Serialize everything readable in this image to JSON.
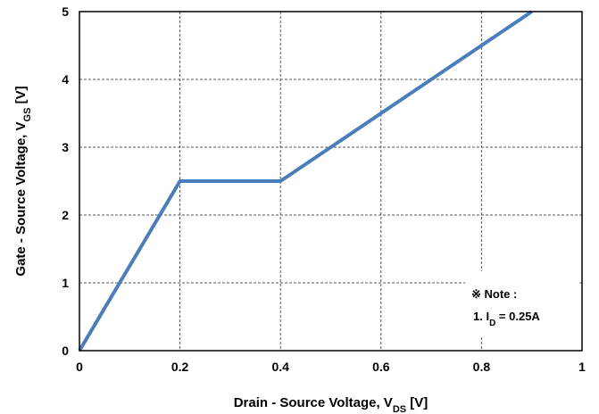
{
  "chart_data": {
    "type": "line",
    "title": "",
    "xlabel": {
      "main": "Drain - Source Voltage, V",
      "sub": "DS",
      "unit": " [V]"
    },
    "ylabel": {
      "main": "Gate - Source Voltage, V",
      "sub": "GS",
      "unit": " [V]"
    },
    "xlim": [
      0,
      1
    ],
    "ylim": [
      0,
      5
    ],
    "x_ticks": [
      "0",
      "0.2",
      "0.4",
      "0.6",
      "0.8",
      "1"
    ],
    "y_ticks": [
      "0",
      "1",
      "2",
      "3",
      "4",
      "5"
    ],
    "grid": true,
    "series": [
      {
        "x": [
          0,
          0.2,
          0.4,
          0.9
        ],
        "y": [
          0,
          2.5,
          2.5,
          5
        ],
        "color": "#4a7ebb"
      }
    ],
    "annotation": {
      "title": "※ Note :",
      "line_prefix": "1. I",
      "line_sub": "D",
      "line_suffix": " = 0.25A"
    }
  }
}
